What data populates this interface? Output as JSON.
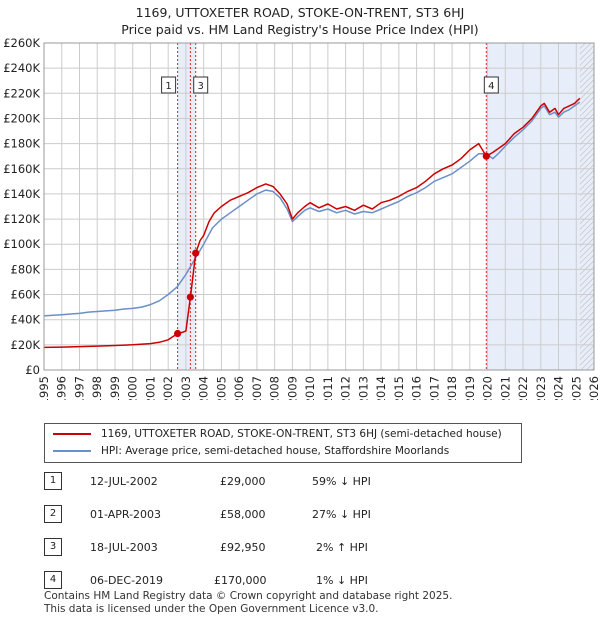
{
  "title": "1169, UTTOXETER ROAD, STOKE-ON-TRENT, ST3 6HJ",
  "subtitle": "Price paid vs. HM Land Registry's House Price Index (HPI)",
  "colors": {
    "property_line": "#cc0000",
    "hpi_line": "#6b8fc7",
    "shade": "#e8eef9",
    "marker_line": "#dd2222",
    "grid": "#cccccc"
  },
  "legend": {
    "property_label": "1169, UTTOXETER ROAD, STOKE-ON-TRENT, ST3 6HJ (semi-detached house)",
    "hpi_label": "HPI: Average price, semi-detached house, Staffordshire Moorlands"
  },
  "transactions": [
    {
      "num": "1",
      "date": "12-JUL-2002",
      "price": "£29,000",
      "hpi": "59% ↓ HPI"
    },
    {
      "num": "2",
      "date": "01-APR-2003",
      "price": "£58,000",
      "hpi": "27% ↓ HPI"
    },
    {
      "num": "3",
      "date": "18-JUL-2003",
      "price": "£92,950",
      "hpi": "2% ↑ HPI"
    },
    {
      "num": "4",
      "date": "06-DEC-2019",
      "price": "£170,000",
      "hpi": "1% ↓ HPI"
    }
  ],
  "footer": {
    "line1": "Contains HM Land Registry data © Crown copyright and database right 2025.",
    "line2": "This data is licensed under the Open Government Licence v3.0."
  },
  "chart_data": {
    "type": "line",
    "xlim": [
      1995,
      2026
    ],
    "ylim": [
      0,
      260000
    ],
    "x_ticks": [
      1995,
      1996,
      1997,
      1998,
      1999,
      2000,
      2001,
      2002,
      2003,
      2004,
      2005,
      2006,
      2007,
      2008,
      2009,
      2010,
      2011,
      2012,
      2013,
      2014,
      2015,
      2016,
      2017,
      2018,
      2019,
      2020,
      2021,
      2022,
      2023,
      2024,
      2025,
      2026
    ],
    "y_ticks": [
      {
        "value": 0,
        "label": "£0"
      },
      {
        "value": 20000,
        "label": "£20K"
      },
      {
        "value": 40000,
        "label": "£40K"
      },
      {
        "value": 60000,
        "label": "£60K"
      },
      {
        "value": 80000,
        "label": "£80K"
      },
      {
        "value": 100000,
        "label": "£100K"
      },
      {
        "value": 120000,
        "label": "£120K"
      },
      {
        "value": 140000,
        "label": "£140K"
      },
      {
        "value": 160000,
        "label": "£160K"
      },
      {
        "value": 180000,
        "label": "£180K"
      },
      {
        "value": 200000,
        "label": "£200K"
      },
      {
        "value": 220000,
        "label": "£220K"
      },
      {
        "value": 240000,
        "label": "£240K"
      },
      {
        "value": 260000,
        "label": "£260K"
      }
    ],
    "series": [
      {
        "name": "1169, UTTOXETER ROAD, STOKE-ON-TRENT, ST3 6HJ (semi-detached house)",
        "x": [
          1995,
          1996,
          1997,
          1998,
          1999,
          2000,
          2001,
          2001.5,
          2002,
          2002.53,
          2002.8,
          2003.0,
          2003.25,
          2003.4,
          2003.55,
          2003.8,
          2004,
          2004.3,
          2004.6,
          2005,
          2005.5,
          2006,
          2006.5,
          2007,
          2007.5,
          2007.9,
          2008.3,
          2008.7,
          2009.0,
          2009.3,
          2009.7,
          2010,
          2010.5,
          2011,
          2011.5,
          2012,
          2012.5,
          2013,
          2013.5,
          2014,
          2014.5,
          2015,
          2015.5,
          2016,
          2016.5,
          2017,
          2017.5,
          2018,
          2018.5,
          2019,
          2019.5,
          2019.93,
          2020.3,
          2020.6,
          2021,
          2021.5,
          2022,
          2022.5,
          2023,
          2023.2,
          2023.5,
          2023.8,
          2024,
          2024.3,
          2024.6,
          2024.9,
          2025.2
        ],
        "y": [
          18000,
          18200,
          18600,
          19000,
          19500,
          20000,
          21000,
          22000,
          24000,
          29000,
          30000,
          31000,
          58000,
          75000,
          92950,
          103000,
          107000,
          118000,
          125000,
          130000,
          135000,
          138000,
          141000,
          145000,
          148000,
          146000,
          140000,
          132000,
          120000,
          125000,
          130000,
          133000,
          129000,
          132000,
          128000,
          130000,
          127000,
          131000,
          128000,
          133000,
          135000,
          138000,
          142000,
          145000,
          150000,
          156000,
          160000,
          163000,
          168000,
          175000,
          180000,
          170000,
          173000,
          176000,
          180000,
          188000,
          193000,
          200000,
          210000,
          212000,
          205000,
          208000,
          203000,
          208000,
          210000,
          212000,
          216000
        ]
      },
      {
        "name": "HPI: Average price, semi-detached house, Staffordshire Moorlands",
        "x": [
          1995,
          1995.5,
          1996,
          1996.5,
          1997,
          1997.5,
          1998,
          1998.5,
          1999,
          1999.5,
          2000,
          2000.5,
          2001,
          2001.5,
          2002,
          2002.5,
          2003,
          2003.5,
          2004,
          2004.5,
          2005,
          2005.5,
          2006,
          2006.5,
          2007,
          2007.5,
          2007.9,
          2008.3,
          2008.7,
          2009.0,
          2009.3,
          2009.7,
          2010,
          2010.5,
          2011,
          2011.5,
          2012,
          2012.5,
          2013,
          2013.5,
          2014,
          2014.5,
          2015,
          2015.5,
          2016,
          2016.5,
          2017,
          2017.5,
          2018,
          2018.5,
          2019,
          2019.5,
          2019.93,
          2020.3,
          2020.6,
          2021,
          2021.5,
          2022,
          2022.5,
          2023,
          2023.2,
          2023.5,
          2023.8,
          2024,
          2024.3,
          2024.6,
          2024.9,
          2025.2
        ],
        "y": [
          43000,
          43500,
          44000,
          44500,
          45000,
          46000,
          46500,
          47000,
          47500,
          48500,
          49000,
          50000,
          52000,
          55000,
          60000,
          66000,
          76000,
          88000,
          100000,
          113000,
          120000,
          125000,
          130000,
          135000,
          140000,
          143000,
          142000,
          137000,
          128000,
          118000,
          122000,
          127000,
          129000,
          126000,
          128000,
          125000,
          127000,
          124000,
          126000,
          125000,
          128000,
          131000,
          134000,
          138000,
          141000,
          145000,
          150000,
          153000,
          156000,
          161000,
          166000,
          172000,
          172000,
          168000,
          172000,
          178000,
          185000,
          191000,
          198000,
          208000,
          210000,
          203000,
          205000,
          201000,
          205000,
          207000,
          210000,
          213000
        ]
      }
    ],
    "markers": [
      {
        "label": "1",
        "x": 2002.53,
        "y": 29000
      },
      {
        "label": "2",
        "x": 2003.25,
        "y": 58000
      },
      {
        "label": "3",
        "x": 2003.55,
        "y": 92950
      },
      {
        "label": "4",
        "x": 2019.93,
        "y": 170000
      }
    ],
    "box_labels": [
      {
        "label": "1",
        "x": 2002.53
      },
      {
        "label": "3",
        "x": 2003.55
      },
      {
        "label": "4",
        "x": 2019.93
      }
    ],
    "shade_ranges": [
      [
        2002.53,
        2003.55
      ],
      [
        2019.93,
        2026
      ]
    ],
    "hatch_from": 2025.2
  }
}
